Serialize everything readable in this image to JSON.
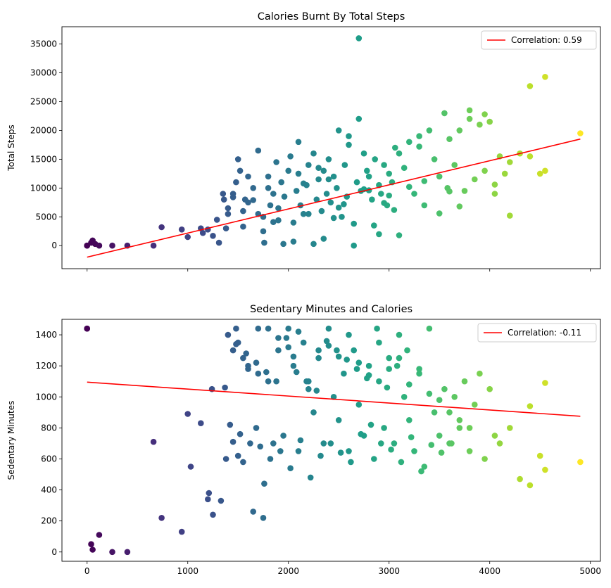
{
  "chart_data": [
    {
      "type": "scatter",
      "title": "Calories Burnt By Total Steps",
      "xlabel": "",
      "ylabel": "Total Steps",
      "xlim": [
        -250,
        5100
      ],
      "ylim": [
        -4000,
        38000
      ],
      "xticks": [
        0,
        1000,
        2000,
        3000,
        4000,
        5000
      ],
      "xtick_labels_visible": false,
      "yticks": [
        0,
        5000,
        10000,
        15000,
        20000,
        25000,
        30000,
        35000
      ],
      "grid": false,
      "legend_position": "top-right",
      "colormap": "viridis",
      "color_by": "x",
      "point_color": "#21918c",
      "trend_line": {
        "label": "Correlation: 0.59",
        "color": "#ff0000",
        "x": [
          0,
          4900
        ],
        "y": [
          -2000,
          18500
        ]
      },
      "points_x": [
        0,
        0,
        40,
        55,
        80,
        120,
        250,
        400,
        660,
        740,
        940,
        1000,
        1130,
        1150,
        1200,
        1250,
        1290,
        1310,
        1360,
        1380,
        1400,
        1450,
        1480,
        1520,
        1550,
        1570,
        1600,
        1650,
        1700,
        1750,
        1760,
        1800,
        1820,
        1850,
        1880,
        1900,
        1930,
        1960,
        2000,
        2020,
        2050,
        2080,
        2100,
        2120,
        2150,
        2180,
        2200,
        2250,
        2280,
        2300,
        2330,
        2350,
        2380,
        2400,
        2420,
        2450,
        2480,
        2500,
        2530,
        2560,
        2580,
        2600,
        2650,
        2680,
        2700,
        2720,
        2750,
        2780,
        2800,
        2830,
        2860,
        2900,
        2920,
        2950,
        2980,
        3000,
        3030,
        3060,
        3100,
        3150,
        3200,
        3250,
        3300,
        3350,
        3400,
        3450,
        3500,
        3550,
        3580,
        3600,
        3650,
        3700,
        3750,
        3800,
        3850,
        3900,
        3950,
        4000,
        4050,
        4100,
        4150,
        4200,
        4300,
        4400,
        4500,
        4550,
        4900,
        2700,
        4400,
        4550,
        3800,
        3950,
        3300,
        1800,
        1600,
        1700,
        1500,
        2100,
        2300,
        2600,
        2900,
        3100,
        1400,
        1350,
        1750,
        1950,
        2050,
        2200,
        2400,
        2450,
        2550,
        2750,
        2850,
        3000,
        3050,
        3200,
        1850,
        1650,
        1550,
        2150,
        2350,
        2650,
        2950,
        3350,
        3500,
        3600,
        3700,
        4050,
        4200,
        1450,
        1900,
        2250,
        2500,
        2800
      ],
      "points_y": [
        0,
        0,
        500,
        900,
        300,
        0,
        0,
        0,
        0,
        3200,
        2800,
        1500,
        3000,
        2200,
        2800,
        1700,
        4500,
        500,
        8000,
        3000,
        5500,
        9000,
        11000,
        13000,
        6000,
        8000,
        7500,
        10000,
        16500,
        5000,
        500,
        12000,
        7000,
        9000,
        14500,
        6500,
        11000,
        8500,
        13000,
        15500,
        4000,
        9500,
        12500,
        7000,
        5500,
        10500,
        14000,
        16000,
        8000,
        11500,
        6000,
        13000,
        9000,
        15000,
        7500,
        12000,
        10000,
        20000,
        5000,
        14000,
        8500,
        17500,
        0,
        11000,
        22000,
        9500,
        16000,
        13000,
        12000,
        8000,
        15000,
        10500,
        9000,
        14000,
        7000,
        12500,
        11000,
        17000,
        16000,
        13500,
        18000,
        9000,
        19000,
        7000,
        20000,
        15000,
        12000,
        23000,
        10000,
        18500,
        14000,
        20000,
        9500,
        22000,
        11500,
        21000,
        13000,
        21500,
        9000,
        15500,
        12500,
        14500,
        16000,
        15500,
        12500,
        13000,
        19500,
        36000,
        27700,
        29300,
        23500,
        22800,
        17200,
        10000,
        12000,
        5500,
        15000,
        18000,
        13500,
        19000,
        2000,
        1800,
        6500,
        9000,
        2500,
        300,
        700,
        5500,
        11500,
        4800,
        7200,
        9800,
        3500,
        8700,
        6200,
        10200,
        4100,
        7900,
        3300,
        10800,
        1200,
        3800,
        7400,
        11200,
        5600,
        9400,
        6800,
        10600,
        5200,
        8400,
        4400,
        300,
        6600,
        9600,
        4200
      ]
    },
    {
      "type": "scatter",
      "title": "Sedentary Minutes and Calories",
      "xlabel": "",
      "ylabel": "Sedentary Minutes",
      "xlim": [
        -250,
        5100
      ],
      "ylim": [
        -60,
        1500
      ],
      "xticks": [
        0,
        1000,
        2000,
        3000,
        4000,
        5000
      ],
      "yticks": [
        0,
        200,
        400,
        600,
        800,
        1000,
        1200,
        1400
      ],
      "grid": false,
      "legend_position": "top-right",
      "colormap": "viridis",
      "color_by": "x",
      "point_color": "#21918c",
      "trend_line": {
        "label": "Correlation: -0.11",
        "color": "#ff0000",
        "x": [
          0,
          4900
        ],
        "y": [
          1095,
          875
        ]
      },
      "points_x": [
        0,
        0,
        40,
        55,
        120,
        250,
        400,
        660,
        740,
        940,
        1000,
        1030,
        1130,
        1200,
        1210,
        1240,
        1250,
        1330,
        1370,
        1450,
        1480,
        1500,
        1550,
        1600,
        1650,
        1680,
        1700,
        1750,
        1760,
        1800,
        1850,
        1900,
        1950,
        2000,
        2050,
        2100,
        2150,
        2200,
        2250,
        2300,
        2350,
        2400,
        2450,
        2500,
        2550,
        2600,
        2650,
        2700,
        2750,
        2800,
        2850,
        2900,
        2950,
        3000,
        3050,
        3100,
        3150,
        3200,
        3250,
        3300,
        3350,
        3400,
        3450,
        3500,
        3550,
        3600,
        3650,
        3700,
        3750,
        3800,
        3850,
        3900,
        3950,
        4000,
        4050,
        4100,
        4200,
        4300,
        4400,
        4500,
        4550,
        4900,
        1400,
        1450,
        1500,
        1550,
        1600,
        1700,
        1800,
        1900,
        2000,
        2050,
        2100,
        2200,
        2300,
        2400,
        2500,
        2600,
        2700,
        2800,
        2900,
        3000,
        3100,
        3200,
        3300,
        3400,
        3500,
        3600,
        3700,
        3800,
        1420,
        1520,
        1620,
        1720,
        1820,
        1920,
        2020,
        2120,
        2220,
        2320,
        2420,
        2520,
        2620,
        2720,
        2820,
        2920,
        3020,
        3120,
        3220,
        3320,
        3420,
        3520,
        3620,
        1380,
        1480,
        1580,
        1680,
        1780,
        1880,
        1980,
        2080,
        2180,
        2280,
        2380,
        2480,
        2580,
        2680,
        2780,
        2880,
        2980,
        3080,
        3180,
        4400,
        4550
      ],
      "points_y": [
        1440,
        1440,
        50,
        15,
        110,
        0,
        0,
        710,
        220,
        130,
        890,
        550,
        830,
        340,
        380,
        1050,
        240,
        330,
        1060,
        710,
        1440,
        620,
        580,
        1180,
        260,
        800,
        1440,
        220,
        440,
        1100,
        700,
        1300,
        750,
        1440,
        1200,
        650,
        1350,
        1100,
        900,
        1250,
        700,
        1440,
        1000,
        850,
        1150,
        650,
        1300,
        950,
        750,
        1200,
        600,
        1100,
        800,
        1250,
        700,
        1400,
        1000,
        850,
        650,
        1180,
        550,
        1440,
        900,
        750,
        1050,
        700,
        1000,
        800,
        1100,
        650,
        950,
        1150,
        600,
        1050,
        750,
        700,
        800,
        470,
        430,
        620,
        530,
        580,
        1400,
        1300,
        1350,
        1250,
        1200,
        1150,
        1440,
        1380,
        1320,
        1260,
        1420,
        1050,
        1300,
        1330,
        1260,
        1400,
        1220,
        1140,
        1350,
        1180,
        1250,
        1080,
        1150,
        1020,
        980,
        900,
        850,
        800,
        820,
        760,
        700,
        680,
        600,
        650,
        540,
        720,
        480,
        620,
        700,
        640,
        580,
        760,
        820,
        700,
        660,
        580,
        740,
        520,
        690,
        640,
        700,
        600,
        1340,
        1280,
        1220,
        1160,
        1100,
        1380,
        1160,
        1100,
        1040,
        1360,
        1300,
        1240,
        1180,
        1120,
        1440,
        1060,
        1200,
        1300,
        940,
        1090,
        890
      ]
    }
  ]
}
